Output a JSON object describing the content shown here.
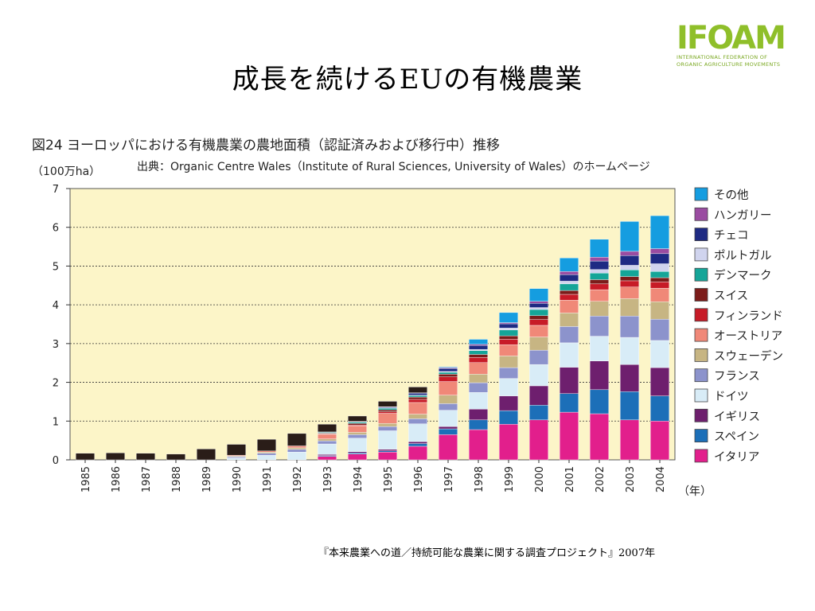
{
  "slide": {
    "title": "成長を続けるEUの有機農業",
    "logo_text": "IFOAM",
    "logo_line1": "INTERNATIONAL FEDERATION OF",
    "logo_line2": "ORGANIC AGRICULTURE MOVEMENTS",
    "footer": "『本来農業への道／持続可能な農業に関する調査プロジェクト』2007年"
  },
  "chart_data": {
    "type": "bar",
    "stacked": true,
    "title": "図24 ヨーロッパにおける有機農業の農地面積（認証済みおよび移行中）推移",
    "source": "出典：Organic Centre Wales（Institute of Rural Sciences, University of Wales）のホームページ",
    "ylabel": "（100万ha）",
    "xunit": "（年）",
    "ylim": [
      0,
      7
    ],
    "yticks": [
      "0",
      "1",
      "2",
      "3",
      "4",
      "5",
      "6",
      "7"
    ],
    "grid": true,
    "legend_position": "right",
    "categories": [
      "1985",
      "1986",
      "1987",
      "1988",
      "1989",
      "1990",
      "1991",
      "1992",
      "1993",
      "1994",
      "1995",
      "1996",
      "1997",
      "1998",
      "1999",
      "2000",
      "2001",
      "2002",
      "2003",
      "2004"
    ],
    "other_color": "#2a1d18",
    "series": [
      {
        "name": "イタリア",
        "color": "#e21f8c",
        "values": [
          0,
          0,
          0,
          0,
          0,
          0,
          0,
          0,
          0.09,
          0.15,
          0.2,
          0.35,
          0.65,
          0.78,
          0.92,
          1.03,
          1.23,
          1.19,
          1.03,
          1.0
        ]
      },
      {
        "name": "スペイン",
        "color": "#1c6fb8",
        "values": [
          0,
          0,
          0,
          0,
          0,
          0,
          0,
          0,
          0.02,
          0.03,
          0.03,
          0.07,
          0.15,
          0.25,
          0.35,
          0.38,
          0.48,
          0.62,
          0.73,
          0.65
        ]
      },
      {
        "name": "イギリス",
        "color": "#6e1f6e",
        "values": [
          0,
          0,
          0,
          0,
          0,
          0,
          0,
          0,
          0.03,
          0.03,
          0.04,
          0.05,
          0.06,
          0.28,
          0.38,
          0.5,
          0.68,
          0.74,
          0.7,
          0.73
        ]
      },
      {
        "name": "ドイツ",
        "color": "#d8ecf7",
        "values": [
          0,
          0,
          0,
          0,
          0,
          0.05,
          0.12,
          0.2,
          0.27,
          0.35,
          0.48,
          0.46,
          0.42,
          0.43,
          0.45,
          0.55,
          0.63,
          0.64,
          0.7,
          0.7
        ]
      },
      {
        "name": "フランス",
        "color": "#8c93cc",
        "values": [
          0,
          0,
          0,
          0,
          0,
          0.03,
          0.05,
          0.07,
          0.08,
          0.09,
          0.11,
          0.13,
          0.17,
          0.25,
          0.28,
          0.37,
          0.42,
          0.52,
          0.55,
          0.55
        ]
      },
      {
        "name": "スウェーデン",
        "color": "#c7b583",
        "values": [
          0,
          0,
          0,
          0,
          0,
          0.02,
          0.03,
          0.04,
          0.05,
          0.06,
          0.08,
          0.12,
          0.22,
          0.22,
          0.3,
          0.34,
          0.35,
          0.38,
          0.45,
          0.45
        ]
      },
      {
        "name": "オーストリア",
        "color": "#f08878",
        "values": [
          0,
          0,
          0,
          0,
          0,
          0.02,
          0.03,
          0.05,
          0.12,
          0.17,
          0.26,
          0.3,
          0.35,
          0.3,
          0.29,
          0.3,
          0.33,
          0.3,
          0.3,
          0.35
        ]
      },
      {
        "name": "フィンランド",
        "color": "#c71b27",
        "values": [
          0,
          0,
          0,
          0,
          0,
          0,
          0,
          0,
          0.01,
          0.02,
          0.04,
          0.08,
          0.12,
          0.13,
          0.14,
          0.15,
          0.15,
          0.15,
          0.16,
          0.16
        ]
      },
      {
        "name": "スイス",
        "color": "#7c1c1a",
        "values": [
          0,
          0,
          0,
          0,
          0,
          0,
          0,
          0,
          0.02,
          0.04,
          0.05,
          0.06,
          0.07,
          0.08,
          0.09,
          0.1,
          0.1,
          0.11,
          0.11,
          0.11
        ]
      },
      {
        "name": "デンマーク",
        "color": "#15a598",
        "values": [
          0,
          0,
          0,
          0,
          0,
          0,
          0,
          0,
          0.02,
          0.03,
          0.04,
          0.04,
          0.05,
          0.1,
          0.15,
          0.16,
          0.17,
          0.17,
          0.17,
          0.16
        ]
      },
      {
        "name": "ポルトガル",
        "color": "#d0d4ee",
        "values": [
          0,
          0,
          0,
          0,
          0,
          0,
          0,
          0,
          0,
          0.01,
          0.01,
          0.01,
          0.02,
          0.03,
          0.05,
          0.05,
          0.07,
          0.09,
          0.12,
          0.2
        ]
      },
      {
        "name": "チェコ",
        "color": "#1e2a83",
        "values": [
          0,
          0,
          0,
          0,
          0,
          0,
          0,
          0,
          0.01,
          0.01,
          0.02,
          0.05,
          0.08,
          0.1,
          0.11,
          0.11,
          0.17,
          0.22,
          0.25,
          0.26
        ]
      },
      {
        "name": "ハンガリー",
        "color": "#9a4ca1",
        "values": [
          0,
          0,
          0,
          0,
          0,
          0,
          0,
          0,
          0,
          0,
          0.01,
          0.01,
          0.02,
          0.03,
          0.03,
          0.05,
          0.08,
          0.1,
          0.11,
          0.13
        ]
      },
      {
        "name": "その他",
        "color": "#159de0",
        "values": [
          0.17,
          0.18,
          0.17,
          0.15,
          0.28,
          0.28,
          0.3,
          0.32,
          0.2,
          0.14,
          0.14,
          0.15,
          0.02,
          0.13,
          0.26,
          0.33,
          0.35,
          0.46,
          0.77,
          0.85
        ]
      }
    ]
  }
}
